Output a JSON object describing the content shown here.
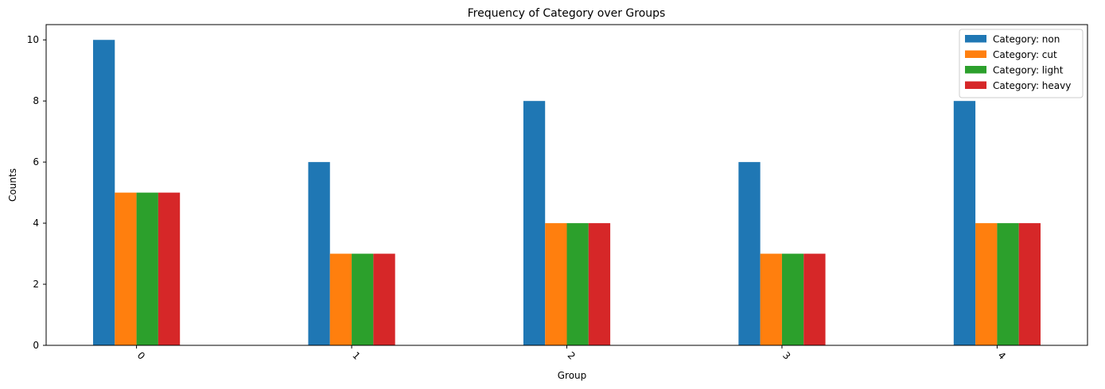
{
  "chart_data": {
    "type": "bar",
    "title": "Frequency of Category over Groups",
    "xlabel": "Group",
    "ylabel": "Counts",
    "categories": [
      "0",
      "1",
      "2",
      "3",
      "4"
    ],
    "ylim": [
      0,
      10.5
    ],
    "yticks": [
      0,
      2,
      4,
      6,
      8,
      10
    ],
    "xtick_rotation_deg": 45,
    "grid": false,
    "legend_position": "top-right",
    "series": [
      {
        "name": "Category: non",
        "color": "#1f77b4",
        "values": [
          10,
          6,
          8,
          6,
          8
        ]
      },
      {
        "name": "Category: cut",
        "color": "#ff7f0e",
        "values": [
          5,
          3,
          4,
          3,
          4
        ]
      },
      {
        "name": "Category: light",
        "color": "#2ca02c",
        "values": [
          5,
          3,
          4,
          3,
          4
        ]
      },
      {
        "name": "Category: heavy",
        "color": "#d62728",
        "values": [
          5,
          3,
          4,
          3,
          4
        ]
      }
    ]
  }
}
